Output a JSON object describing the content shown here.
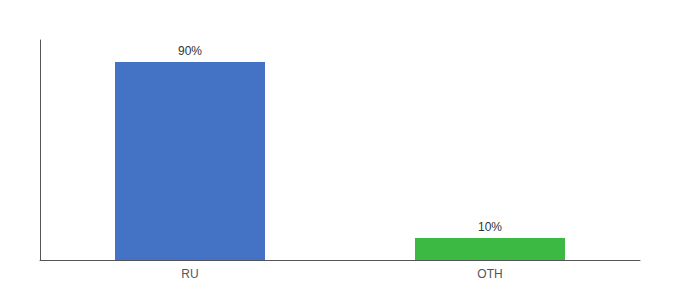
{
  "chart_data": {
    "type": "bar",
    "categories": [
      "RU",
      "OTH"
    ],
    "values": [
      90,
      10
    ],
    "colors": [
      "#4472c4",
      "#3cb943"
    ],
    "value_labels": [
      "90%",
      "10%"
    ],
    "data_labels": true,
    "ylim": [
      0,
      100
    ],
    "grid": false,
    "tick_labels": "x"
  }
}
